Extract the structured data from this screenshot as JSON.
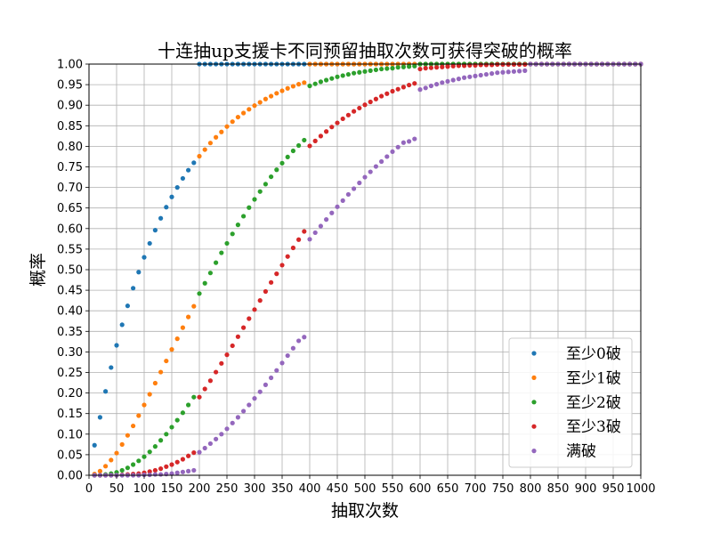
{
  "chart_data": {
    "type": "scatter",
    "title": "十连抽up支援卡不同预留抽取次数可获得突破的概率",
    "xlabel": "抽取次数",
    "ylabel": "概率",
    "xlim": [
      0,
      1000
    ],
    "ylim": [
      0,
      1
    ],
    "xticks": [
      "0",
      "50",
      "100",
      "150",
      "200",
      "250",
      "300",
      "350",
      "400",
      "450",
      "500",
      "550",
      "600",
      "650",
      "700",
      "750",
      "800",
      "850",
      "900",
      "950",
      "1000"
    ],
    "yticks": [
      "0.00",
      "0.05",
      "0.10",
      "0.15",
      "0.20",
      "0.25",
      "0.30",
      "0.35",
      "0.40",
      "0.45",
      "0.50",
      "0.55",
      "0.60",
      "0.65",
      "0.70",
      "0.75",
      "0.80",
      "0.85",
      "0.90",
      "0.95",
      "1.00"
    ],
    "grid": true,
    "legend_position": "lower-right",
    "x": [
      10,
      20,
      30,
      40,
      50,
      60,
      70,
      80,
      90,
      100,
      110,
      120,
      130,
      140,
      150,
      160,
      170,
      180,
      190,
      200,
      210,
      220,
      230,
      240,
      250,
      260,
      270,
      280,
      290,
      300,
      310,
      320,
      330,
      340,
      350,
      360,
      370,
      380,
      390,
      400,
      410,
      420,
      430,
      440,
      450,
      460,
      470,
      480,
      490,
      500,
      510,
      520,
      530,
      540,
      550,
      560,
      570,
      580,
      590,
      600,
      610,
      620,
      630,
      640,
      650,
      660,
      670,
      680,
      690,
      700,
      710,
      720,
      730,
      740,
      750,
      760,
      770,
      780,
      790,
      800,
      810,
      820,
      830,
      840,
      850,
      860,
      870,
      880,
      890,
      900,
      910,
      920,
      930,
      940,
      950,
      960,
      970,
      980,
      990,
      1000
    ],
    "series": [
      {
        "name": "至少0破",
        "color": "#1f77b4",
        "values": [
          0.073,
          0.141,
          0.204,
          0.262,
          0.316,
          0.366,
          0.412,
          0.455,
          0.494,
          0.53,
          0.564,
          0.596,
          0.625,
          0.652,
          0.677,
          0.7,
          0.722,
          0.742,
          0.76,
          1.0,
          1.0,
          1.0,
          1.0,
          1.0,
          1.0,
          1.0,
          1.0,
          1.0,
          1.0,
          1.0,
          1.0,
          1.0,
          1.0,
          1.0,
          1.0,
          1.0,
          1.0,
          1.0,
          1.0,
          1.0,
          1.0,
          1.0,
          1.0,
          1.0,
          1.0,
          1.0,
          1.0,
          1.0,
          1.0,
          1.0,
          1.0,
          1.0,
          1.0,
          1.0,
          1.0,
          1.0,
          1.0,
          1.0,
          1.0,
          1.0,
          1.0,
          1.0,
          1.0,
          1.0,
          1.0,
          1.0,
          1.0,
          1.0,
          1.0,
          1.0,
          1.0,
          1.0,
          1.0,
          1.0,
          1.0,
          1.0,
          1.0,
          1.0,
          1.0,
          1.0,
          1.0,
          1.0,
          1.0,
          1.0,
          1.0,
          1.0,
          1.0,
          1.0,
          1.0,
          1.0,
          1.0,
          1.0,
          1.0,
          1.0,
          1.0,
          1.0,
          1.0,
          1.0,
          1.0,
          1.0
        ]
      },
      {
        "name": "至少1破",
        "color": "#ff7f0e",
        "values": [
          0.003,
          0.01,
          0.022,
          0.037,
          0.054,
          0.075,
          0.097,
          0.12,
          0.145,
          0.171,
          0.197,
          0.224,
          0.251,
          0.278,
          0.306,
          0.332,
          0.359,
          0.385,
          0.411,
          0.776,
          0.792,
          0.808,
          0.822,
          0.835,
          0.848,
          0.86,
          0.871,
          0.881,
          0.89,
          0.899,
          0.907,
          0.915,
          0.922,
          0.929,
          0.935,
          0.941,
          0.946,
          0.951,
          0.955,
          1.0,
          1.0,
          1.0,
          1.0,
          1.0,
          1.0,
          1.0,
          1.0,
          1.0,
          1.0,
          1.0,
          1.0,
          1.0,
          1.0,
          1.0,
          1.0,
          1.0,
          1.0,
          1.0,
          1.0,
          1.0,
          1.0,
          1.0,
          1.0,
          1.0,
          1.0,
          1.0,
          1.0,
          1.0,
          1.0,
          1.0,
          1.0,
          1.0,
          1.0,
          1.0,
          1.0,
          1.0,
          1.0,
          1.0,
          1.0,
          1.0,
          1.0,
          1.0,
          1.0,
          1.0,
          1.0,
          1.0,
          1.0,
          1.0,
          1.0,
          1.0,
          1.0,
          1.0,
          1.0,
          1.0,
          1.0,
          1.0,
          1.0,
          1.0,
          1.0,
          1.0
        ]
      },
      {
        "name": "至少2破",
        "color": "#2ca02c",
        "values": [
          0.0,
          0.0,
          0.002,
          0.004,
          0.007,
          0.012,
          0.018,
          0.026,
          0.035,
          0.045,
          0.057,
          0.07,
          0.085,
          0.1,
          0.117,
          0.134,
          0.152,
          0.171,
          0.19,
          0.442,
          0.467,
          0.492,
          0.517,
          0.541,
          0.564,
          0.587,
          0.609,
          0.63,
          0.651,
          0.671,
          0.69,
          0.708,
          0.726,
          0.743,
          0.759,
          0.774,
          0.789,
          0.802,
          0.815,
          0.947,
          0.952,
          0.957,
          0.961,
          0.965,
          0.969,
          0.972,
          0.975,
          0.978,
          0.98,
          0.982,
          0.984,
          0.986,
          0.988,
          0.989,
          0.99,
          0.992,
          0.993,
          0.994,
          0.995,
          1.0,
          1.0,
          1.0,
          1.0,
          1.0,
          1.0,
          1.0,
          1.0,
          1.0,
          1.0,
          1.0,
          1.0,
          1.0,
          1.0,
          1.0,
          1.0,
          1.0,
          1.0,
          1.0,
          1.0,
          1.0,
          1.0,
          1.0,
          1.0,
          1.0,
          1.0,
          1.0,
          1.0,
          1.0,
          1.0,
          1.0,
          1.0,
          1.0,
          1.0,
          1.0,
          1.0,
          1.0,
          1.0,
          1.0,
          1.0,
          1.0
        ]
      },
      {
        "name": "至少3破",
        "color": "#d62728",
        "values": [
          0.0,
          0.0,
          0.0,
          0.0,
          0.0,
          0.001,
          0.002,
          0.003,
          0.004,
          0.006,
          0.009,
          0.012,
          0.016,
          0.021,
          0.026,
          0.032,
          0.039,
          0.047,
          0.055,
          0.19,
          0.21,
          0.23,
          0.251,
          0.272,
          0.293,
          0.315,
          0.337,
          0.359,
          0.381,
          0.403,
          0.425,
          0.447,
          0.469,
          0.49,
          0.511,
          0.532,
          0.553,
          0.573,
          0.593,
          0.801,
          0.813,
          0.825,
          0.836,
          0.847,
          0.857,
          0.867,
          0.876,
          0.885,
          0.893,
          0.901,
          0.908,
          0.915,
          0.922,
          0.928,
          0.934,
          0.939,
          0.944,
          0.949,
          0.953,
          0.988,
          0.99,
          0.991,
          0.992,
          0.993,
          0.994,
          0.995,
          0.996,
          0.996,
          0.997,
          0.997,
          0.998,
          0.998,
          0.998,
          0.999,
          0.999,
          0.999,
          0.999,
          0.999,
          0.999,
          1.0,
          1.0,
          1.0,
          1.0,
          1.0,
          1.0,
          1.0,
          1.0,
          1.0,
          1.0,
          1.0,
          1.0,
          1.0,
          1.0,
          1.0,
          1.0,
          1.0,
          1.0,
          1.0,
          1.0,
          1.0
        ]
      },
      {
        "name": "满破",
        "color": "#9467bd",
        "values": [
          0.0,
          0.0,
          0.0,
          0.0,
          0.0,
          0.0,
          0.0,
          0.0,
          0.0,
          0.001,
          0.001,
          0.002,
          0.002,
          0.003,
          0.004,
          0.006,
          0.008,
          0.01,
          0.012,
          0.056,
          0.066,
          0.077,
          0.088,
          0.1,
          0.113,
          0.127,
          0.141,
          0.156,
          0.171,
          0.187,
          0.203,
          0.22,
          0.237,
          0.255,
          0.273,
          0.291,
          0.309,
          0.327,
          0.336,
          0.574,
          0.59,
          0.606,
          0.622,
          0.638,
          0.653,
          0.668,
          0.683,
          0.697,
          0.711,
          0.725,
          0.738,
          0.751,
          0.763,
          0.775,
          0.787,
          0.798,
          0.809,
          0.812,
          0.818,
          0.938,
          0.942,
          0.947,
          0.951,
          0.955,
          0.958,
          0.961,
          0.964,
          0.967,
          0.969,
          0.971,
          0.973,
          0.975,
          0.977,
          0.979,
          0.98,
          0.981,
          0.982,
          0.983,
          0.984,
          1.0,
          1.0,
          1.0,
          1.0,
          1.0,
          1.0,
          1.0,
          1.0,
          1.0,
          1.0,
          1.0,
          1.0,
          1.0,
          1.0,
          1.0,
          1.0,
          1.0,
          1.0,
          1.0,
          1.0,
          1.0
        ]
      }
    ]
  }
}
